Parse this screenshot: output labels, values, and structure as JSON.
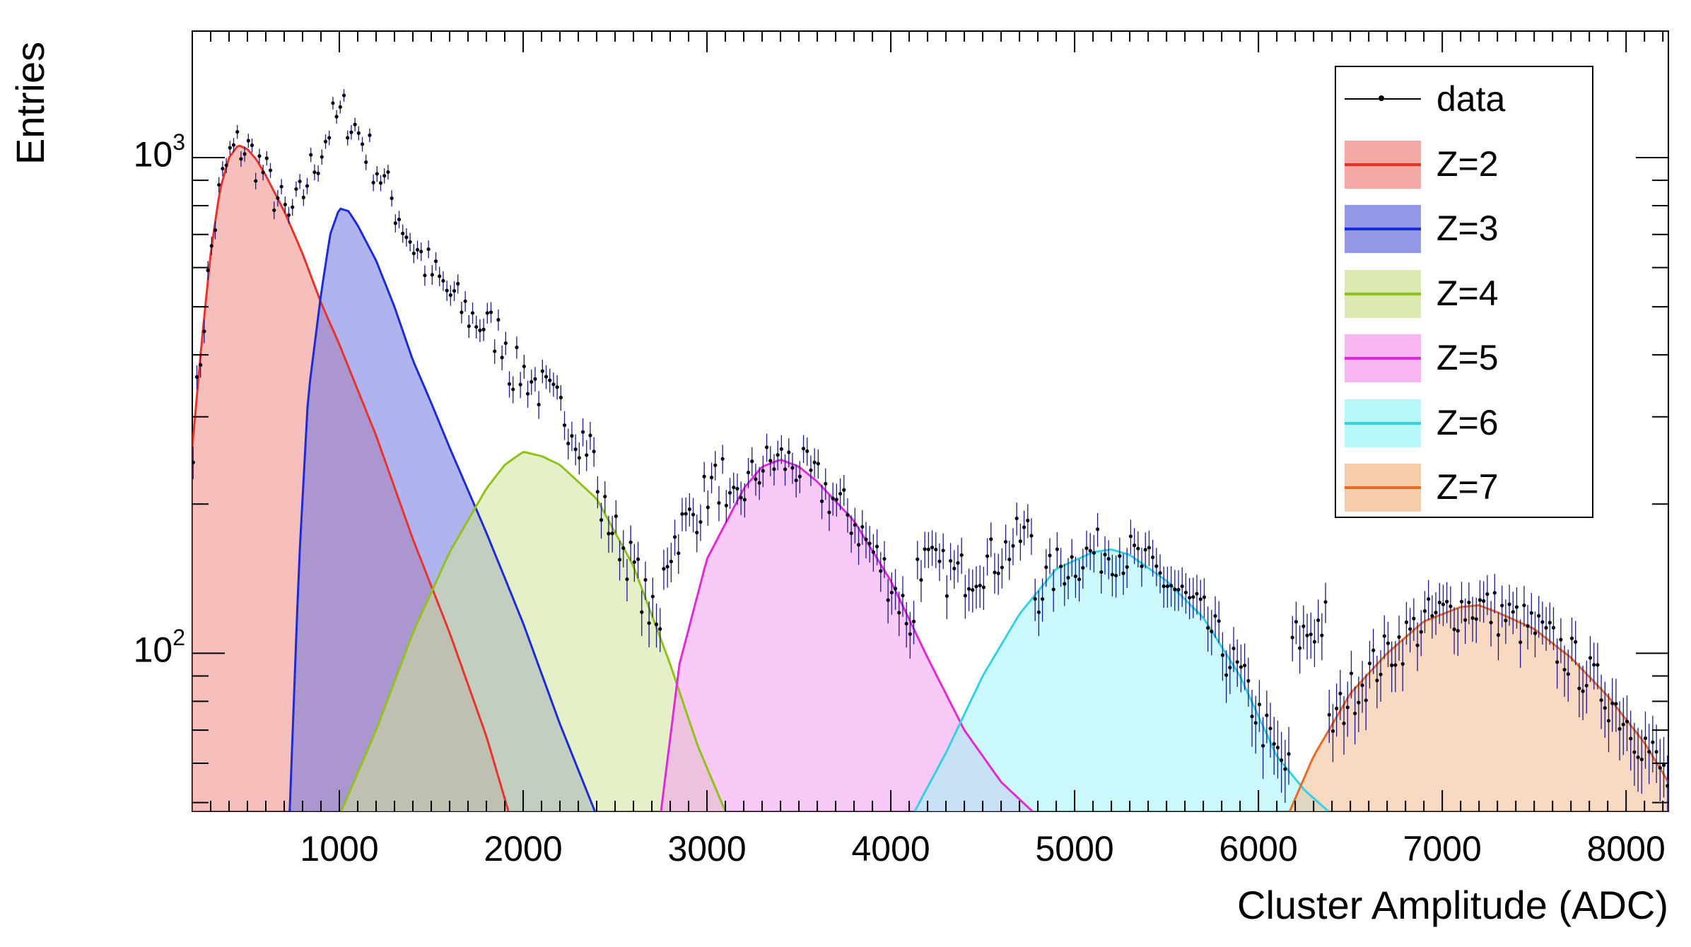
{
  "chart_data": {
    "type": "histogram",
    "xlabel": "Cluster Amplitude (ADC)",
    "ylabel": "Entries",
    "xlim": [
      200,
      8230
    ],
    "ylim": [
      48,
      1800
    ],
    "yscale": "log",
    "xticks": [
      1000,
      2000,
      3000,
      4000,
      5000,
      6000,
      7000,
      8000
    ],
    "yticks": [
      {
        "base": "10",
        "exp": "2",
        "value": 100
      },
      {
        "base": "10",
        "exp": "3",
        "value": 1000
      }
    ],
    "grid": false,
    "legend_position": "top-right",
    "legend": [
      {
        "label": "data",
        "kind": "points"
      },
      {
        "label": "Z=2",
        "kind": "fill"
      },
      {
        "label": "Z=3",
        "kind": "fill"
      },
      {
        "label": "Z=4",
        "kind": "fill"
      },
      {
        "label": "Z=5",
        "kind": "fill"
      },
      {
        "label": "Z=6",
        "kind": "fill"
      },
      {
        "label": "Z=7",
        "kind": "fill"
      }
    ],
    "series": [
      {
        "name": "Z=2",
        "line_color": "#e8322a",
        "fill_color": "#f08a84",
        "range": [
          200,
          1920
        ],
        "points": [
          [
            200,
            260
          ],
          [
            250,
            420
          ],
          [
            300,
            640
          ],
          [
            350,
            860
          ],
          [
            400,
            1000
          ],
          [
            450,
            1060
          ],
          [
            500,
            1040
          ],
          [
            550,
            990
          ],
          [
            600,
            920
          ],
          [
            700,
            780
          ],
          [
            800,
            640
          ],
          [
            900,
            510
          ],
          [
            1000,
            420
          ],
          [
            1200,
            275
          ],
          [
            1400,
            170
          ],
          [
            1600,
            110
          ],
          [
            1800,
            68
          ],
          [
            1920,
            48
          ]
        ]
      },
      {
        "name": "Z=3",
        "line_color": "#1c2bd8",
        "fill_color": "#6e74e0",
        "range": [
          730,
          2390
        ],
        "points": [
          [
            730,
            48
          ],
          [
            780,
            150
          ],
          [
            830,
            330
          ],
          [
            900,
            530
          ],
          [
            950,
            700
          ],
          [
            1000,
            790
          ],
          [
            1050,
            780
          ],
          [
            1100,
            730
          ],
          [
            1200,
            620
          ],
          [
            1300,
            500
          ],
          [
            1400,
            390
          ],
          [
            1500,
            320
          ],
          [
            1600,
            260
          ],
          [
            1800,
            175
          ],
          [
            2000,
            115
          ],
          [
            2200,
            72
          ],
          [
            2390,
            48
          ]
        ]
      },
      {
        "name": "Z=4",
        "line_color": "#8fc21a",
        "fill_color": "#cfe39a",
        "range": [
          1010,
          3100
        ],
        "points": [
          [
            1010,
            48
          ],
          [
            1200,
            70
          ],
          [
            1400,
            110
          ],
          [
            1600,
            160
          ],
          [
            1800,
            215
          ],
          [
            1900,
            240
          ],
          [
            2000,
            255
          ],
          [
            2100,
            250
          ],
          [
            2200,
            240
          ],
          [
            2400,
            205
          ],
          [
            2600,
            150
          ],
          [
            2800,
            95
          ],
          [
            2950,
            65
          ],
          [
            3100,
            48
          ]
        ]
      },
      {
        "name": "Z=5",
        "line_color": "#e02ad8",
        "fill_color": "#f49cf0",
        "range": [
          2750,
          4770
        ],
        "points": [
          [
            2750,
            48
          ],
          [
            2850,
            95
          ],
          [
            3000,
            155
          ],
          [
            3200,
            215
          ],
          [
            3300,
            238
          ],
          [
            3400,
            246
          ],
          [
            3500,
            238
          ],
          [
            3600,
            222
          ],
          [
            3800,
            185
          ],
          [
            4000,
            140
          ],
          [
            4200,
            98
          ],
          [
            4400,
            70
          ],
          [
            4600,
            55
          ],
          [
            4770,
            48
          ]
        ]
      },
      {
        "name": "Z=6",
        "line_color": "#36d0e0",
        "fill_color": "#a0f4f8",
        "range": [
          4130,
          6380
        ],
        "points": [
          [
            4130,
            48
          ],
          [
            4300,
            63
          ],
          [
            4500,
            90
          ],
          [
            4700,
            120
          ],
          [
            4900,
            148
          ],
          [
            5100,
            160
          ],
          [
            5200,
            162
          ],
          [
            5300,
            158
          ],
          [
            5500,
            140
          ],
          [
            5700,
            118
          ],
          [
            5900,
            90
          ],
          [
            6100,
            62
          ],
          [
            6250,
            53
          ],
          [
            6380,
            48
          ]
        ]
      },
      {
        "name": "Z=7",
        "line_color": "#e86a28",
        "fill_color": "#f2bb90",
        "range": [
          6170,
          8230
        ],
        "points": [
          [
            6170,
            48
          ],
          [
            6300,
            62
          ],
          [
            6500,
            83
          ],
          [
            6700,
            100
          ],
          [
            6900,
            116
          ],
          [
            7100,
            124
          ],
          [
            7200,
            125
          ],
          [
            7300,
            121
          ],
          [
            7500,
            112
          ],
          [
            7700,
            98
          ],
          [
            7900,
            82
          ],
          [
            8100,
            66
          ],
          [
            8230,
            55
          ]
        ]
      }
    ],
    "data_points_note_hidden": false
  }
}
